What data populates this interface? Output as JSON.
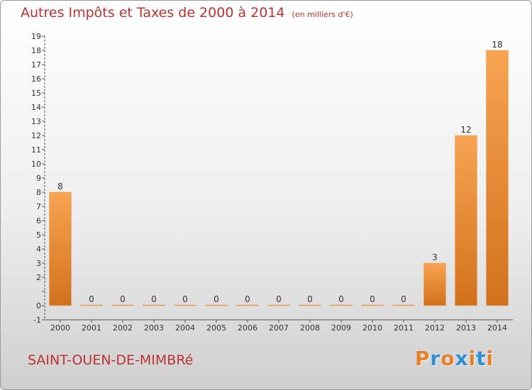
{
  "header": {
    "title": "Autres Impôts et Taxes de 2000 à 2014",
    "subtitle": "(en milliers d'€)"
  },
  "footer": {
    "commune": "SAINT-OUEN-DE-MIMBRé",
    "logo": "Proxiti"
  },
  "colors": {
    "title": "#bb3333",
    "bar_light": "#f7a452",
    "bar_dark": "#d2711c",
    "logo_letters": [
      "#e8802a",
      "#2e8fd6",
      "#e8802a",
      "#2e8fd6",
      "#e8802a",
      "#2e8fd6",
      "#e8802a"
    ]
  },
  "chart_data": {
    "type": "bar",
    "categories": [
      "2000",
      "2001",
      "2002",
      "2003",
      "2004",
      "2005",
      "2006",
      "2007",
      "2008",
      "2009",
      "2010",
      "2011",
      "2012",
      "2013",
      "2014"
    ],
    "values": [
      8,
      0,
      0,
      0,
      0,
      0,
      0,
      0,
      0,
      0,
      0,
      0,
      3,
      12,
      18
    ],
    "data_labels": [
      "8",
      "0",
      "0",
      "0",
      "0",
      "0",
      "0",
      "0",
      "0",
      "0",
      "0",
      "0",
      "3",
      "12",
      "18"
    ],
    "yticks": [
      -1,
      0,
      2,
      3,
      4,
      5,
      6,
      7,
      8,
      9,
      10,
      11,
      12,
      13,
      14,
      15,
      16,
      17,
      18,
      19
    ],
    "ylim": [
      -1,
      19
    ],
    "grid": false,
    "xlabel": "",
    "ylabel": ""
  }
}
